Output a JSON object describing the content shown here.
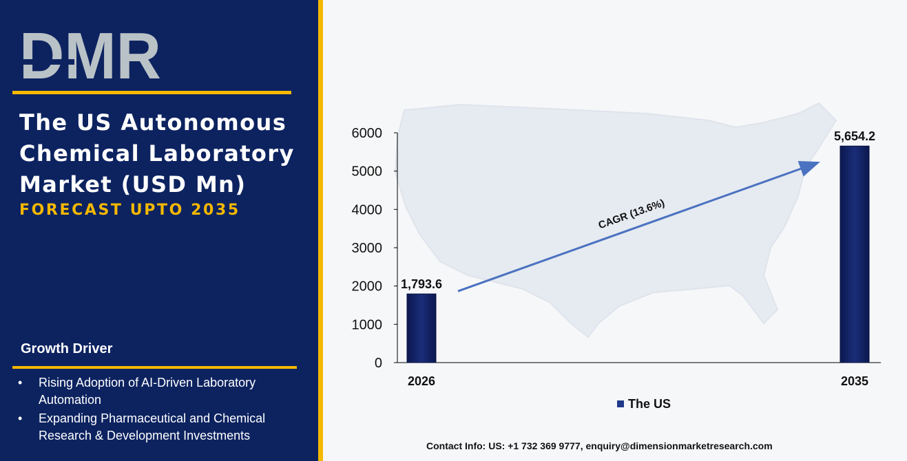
{
  "brand": {
    "logo_text": "DMR"
  },
  "header": {
    "title": "The US Autonomous Chemical Laboratory Market (USD Mn)",
    "subtitle": "FORECAST UPTO 2035"
  },
  "growth_driver": {
    "title": "Growth Driver",
    "items": [
      "Rising Adoption of AI-Driven Laboratory Automation",
      "Expanding Pharmaceutical and Chemical Research & Development Investments"
    ]
  },
  "colors": {
    "panel": "#0d2360",
    "accent": "#f5b800",
    "bar": "#0f1d5c",
    "arrow": "#4a72c0",
    "logo_red": "#e2282d",
    "logo_grey": "#b9c2c6"
  },
  "chart_data": {
    "type": "bar",
    "categories": [
      "2026",
      "2035"
    ],
    "series": [
      {
        "name": "The US",
        "values": [
          1793.6,
          5654.2
        ]
      }
    ],
    "data_labels": [
      "1,793.6",
      "5,654.2"
    ],
    "y_ticks": [
      "0",
      "1000",
      "2000",
      "3000",
      "4000",
      "5000",
      "6000"
    ],
    "ylim": [
      0,
      6000
    ],
    "legend": "bottom",
    "annotation": "CAGR (13.6%)",
    "background_image": "us-map"
  },
  "footer": {
    "contact": "Contact Info: US: +1 732 369 9777, enquiry@dimensionmarketresearch.com"
  }
}
